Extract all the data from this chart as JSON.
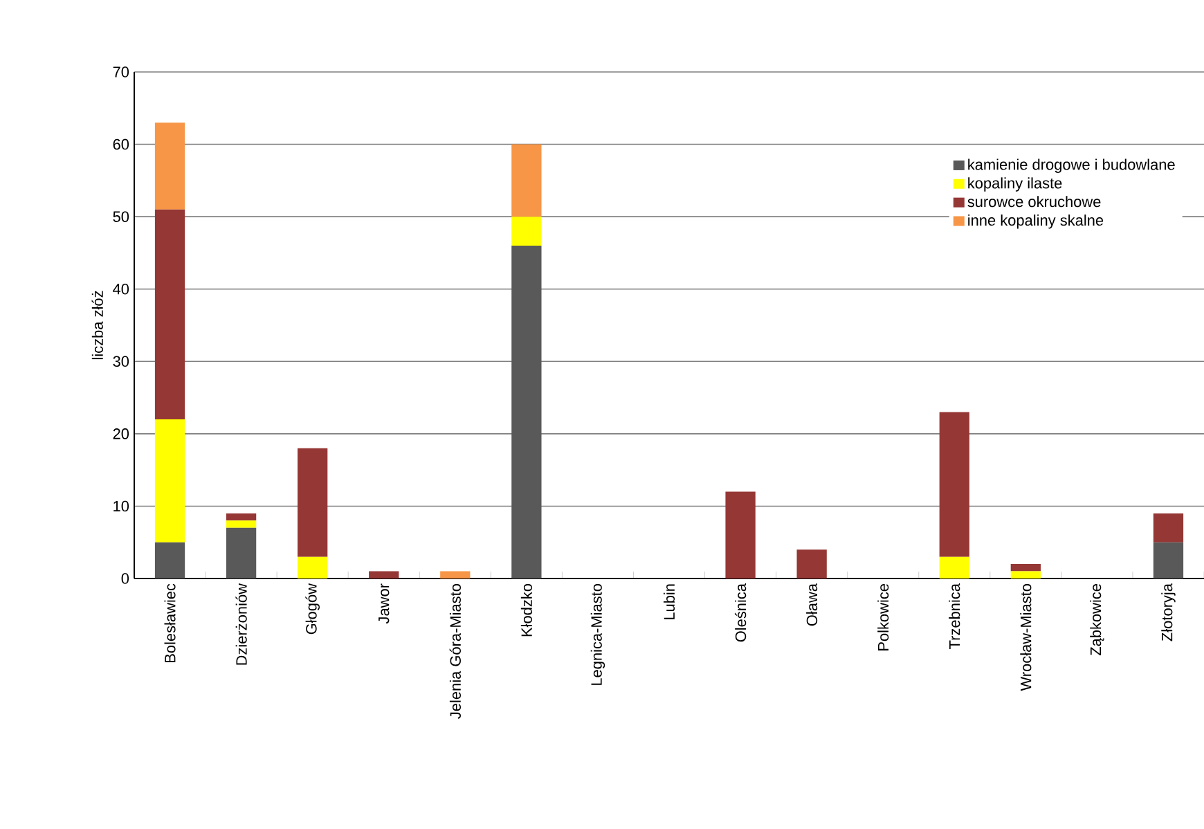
{
  "chart_data": {
    "type": "bar",
    "stacked": true,
    "ylabel": "liczba złóż",
    "categories": [
      "Bolesławiec",
      "Dzierżoniów",
      "Głogów",
      "Jawor",
      "Jelenia Góra-Miasto",
      "Kłodzko",
      "Legnica-Miasto",
      "Lubin",
      "Oleśnica",
      "Oława",
      "Polkowice",
      "Trzebnica",
      "Wrocław-Miasto",
      "Ząbkowice",
      "Złotoryja"
    ],
    "series": [
      {
        "name": "kamienie drogowe i budowlane",
        "color": "#595959",
        "values": [
          5,
          7,
          0,
          0,
          0,
          46,
          0,
          0,
          0,
          0,
          0,
          0,
          0,
          0,
          5
        ]
      },
      {
        "name": "kopaliny ilaste",
        "color": "#ffff00",
        "values": [
          17,
          1,
          3,
          0,
          0,
          4,
          0,
          0,
          0,
          0,
          0,
          3,
          1,
          0,
          0
        ]
      },
      {
        "name": "surowce okruchowe",
        "color": "#953735",
        "values": [
          29,
          1,
          15,
          1,
          0,
          0,
          0,
          0,
          12,
          4,
          0,
          20,
          1,
          0,
          4
        ]
      },
      {
        "name": "inne kopaliny skalne",
        "color": "#f79646",
        "values": [
          12,
          0,
          0,
          0,
          1,
          10,
          0,
          0,
          0,
          0,
          0,
          0,
          0,
          0,
          0
        ]
      }
    ],
    "ylim": [
      0,
      70
    ],
    "yticks": [
      0,
      10,
      20,
      30,
      40,
      50,
      60,
      70
    ],
    "grid": "y",
    "legend": "top right"
  }
}
